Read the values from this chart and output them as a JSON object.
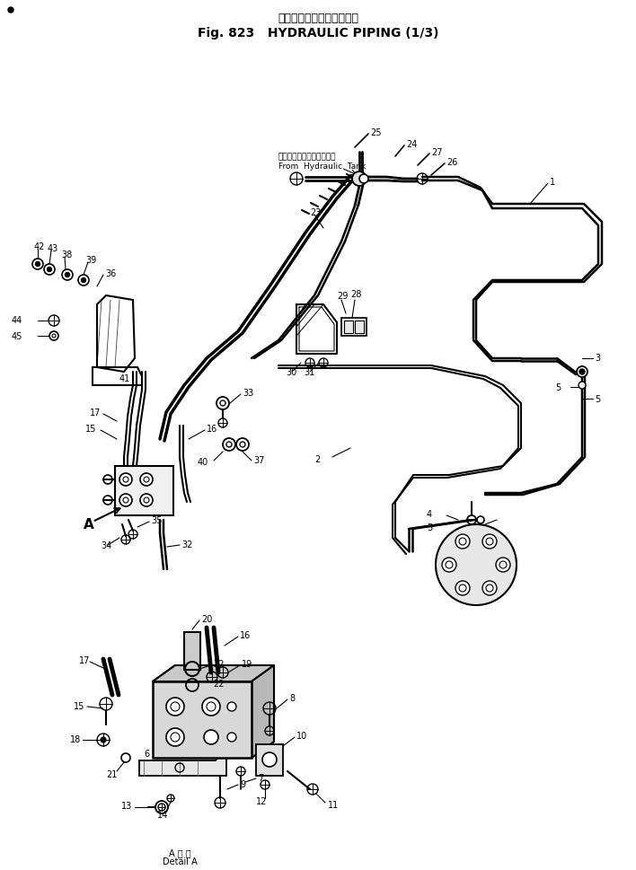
{
  "title_japanese": "ハイドロリックパイピング",
  "title_english": "Fig. 823   HYDRAULIC PIPING (1/3)",
  "bg_color": "#ffffff",
  "line_color": "#000000",
  "text_color": "#000000",
  "fig_width": 7.08,
  "fig_height": 9.7,
  "dpi": 100,
  "hydraulic_tank_label_jp": "ハイドロリックタンクから",
  "hydraulic_tank_label_en": "From  Hydraulic  Tank",
  "detail_label_jp": "A 拡 大",
  "detail_label_en": "Detail A"
}
